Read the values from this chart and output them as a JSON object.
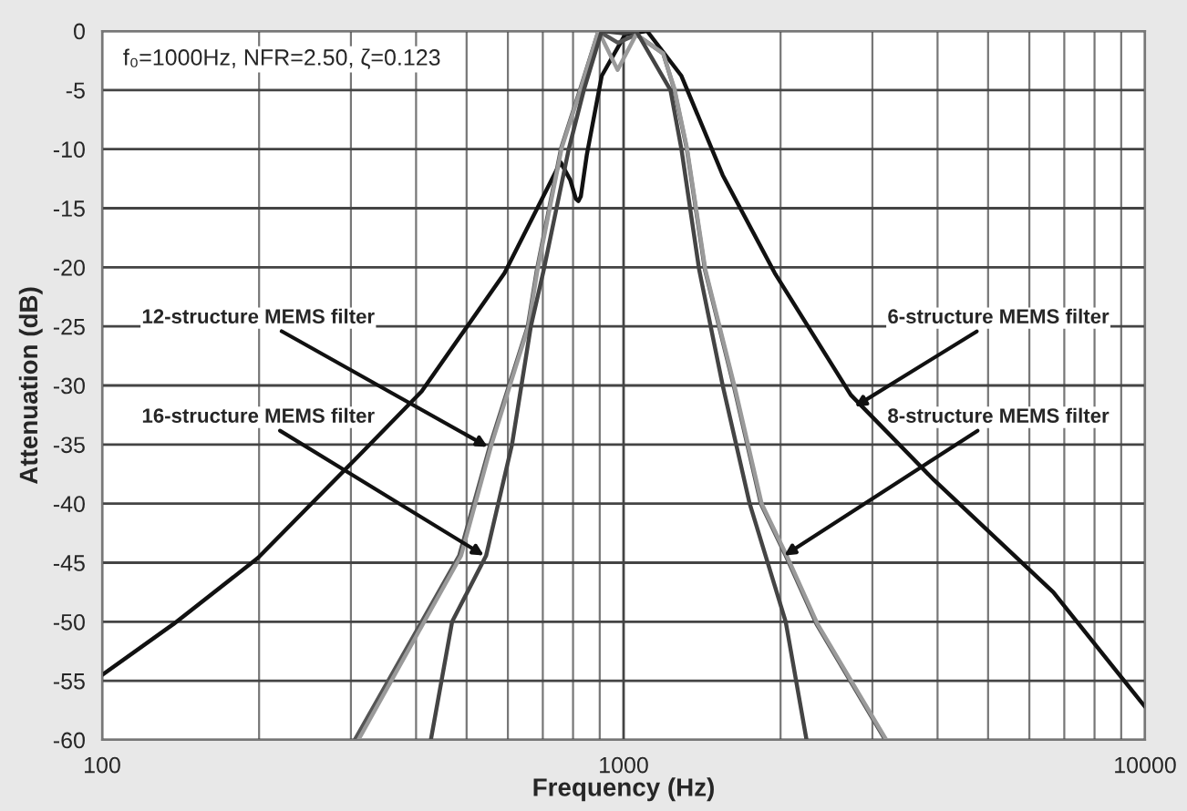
{
  "chart_data": {
    "type": "line",
    "xlabel": "Frequency (Hz)",
    "ylabel": "Attenuation (dB)",
    "log": "x",
    "grid": true,
    "marker": "none",
    "line_style": "solid",
    "xlim": [
      100,
      10000
    ],
    "xticks": [
      100,
      1000,
      10000
    ],
    "ylim": [
      -60,
      0
    ],
    "yticks": [
      -60,
      -55,
      -50,
      -45,
      -40,
      -35,
      -30,
      -25,
      -20,
      -15,
      -10,
      -5,
      0
    ],
    "series": [
      {
        "color": "#111111",
        "x": [
          100,
          137,
          199,
          305,
          410,
          591,
          757,
          790,
          810,
          819,
          828,
          850,
          908,
          1007,
          1109,
          1291,
          1549,
          1950,
          2727,
          3936,
          6668,
          10000
        ],
        "values": [
          -54.5,
          -50.2,
          -44.6,
          -36.3,
          -30.5,
          -20.5,
          -11.1,
          -12.6,
          -14.2,
          -14.4,
          -14,
          -10.5,
          -3.8,
          -0.3,
          0,
          -3.8,
          -12.2,
          -20.5,
          -30.8,
          -38,
          -47.5,
          -57.2
        ]
      },
      {
        "color": "#555555",
        "x": [
          305,
          484,
          555,
          655,
          682,
          759,
          826,
          895,
          975,
          1057,
          1191,
          1250,
          1321,
          1432,
          1630,
          1833,
          2046,
          2344,
          3175
        ],
        "values": [
          -60,
          -44.4,
          -35,
          -25,
          -20.2,
          -9.9,
          -4.9,
          0,
          -1,
          -0.3,
          -1.9,
          -4.9,
          -9.9,
          -20.2,
          -30.2,
          -40,
          -44.4,
          -50.2,
          -60
        ]
      },
      {
        "color": "#9a9a9a",
        "x": [
          310,
          488,
          558,
          657,
          684,
          761,
          828,
          895,
          974,
          1057,
          1191,
          1252,
          1323,
          1435,
          1635,
          1840,
          2055,
          2355,
          3190
        ],
        "values": [
          -60,
          -44.4,
          -35,
          -25,
          -20.2,
          -9.9,
          -4.9,
          0,
          -3.3,
          -0.3,
          -1.9,
          -4.9,
          -9.9,
          -20.2,
          -30.2,
          -40,
          -44.4,
          -50.2,
          -60
        ]
      },
      {
        "color": "#444444",
        "x": [
          427,
          469,
          545,
          611,
          664,
          703,
          785,
          839,
          908,
          1000,
          1057,
          1230,
          1291,
          1396,
          1549,
          1745,
          2046,
          2243
        ],
        "values": [
          -60,
          -50,
          -44.4,
          -35,
          -25,
          -20.2,
          -10,
          -5,
          0,
          -0.2,
          0,
          -5,
          -10,
          -20.2,
          -30,
          -40,
          -50,
          -60
        ]
      }
    ],
    "annotations": [
      "f₀=1000Hz, NFR=2.50, ζ=0.123",
      {
        "text": "12-structure MEMS filter",
        "x": 549,
        "y": -35.2
      },
      {
        "text": "16-structure MEMS filter",
        "x": 540,
        "y": -44.4
      },
      {
        "text": "6-structure MEMS filter",
        "x": 2775,
        "y": -31.8
      },
      {
        "text": "8-structure MEMS filter",
        "x": 2032,
        "y": -44.4
      }
    ]
  }
}
